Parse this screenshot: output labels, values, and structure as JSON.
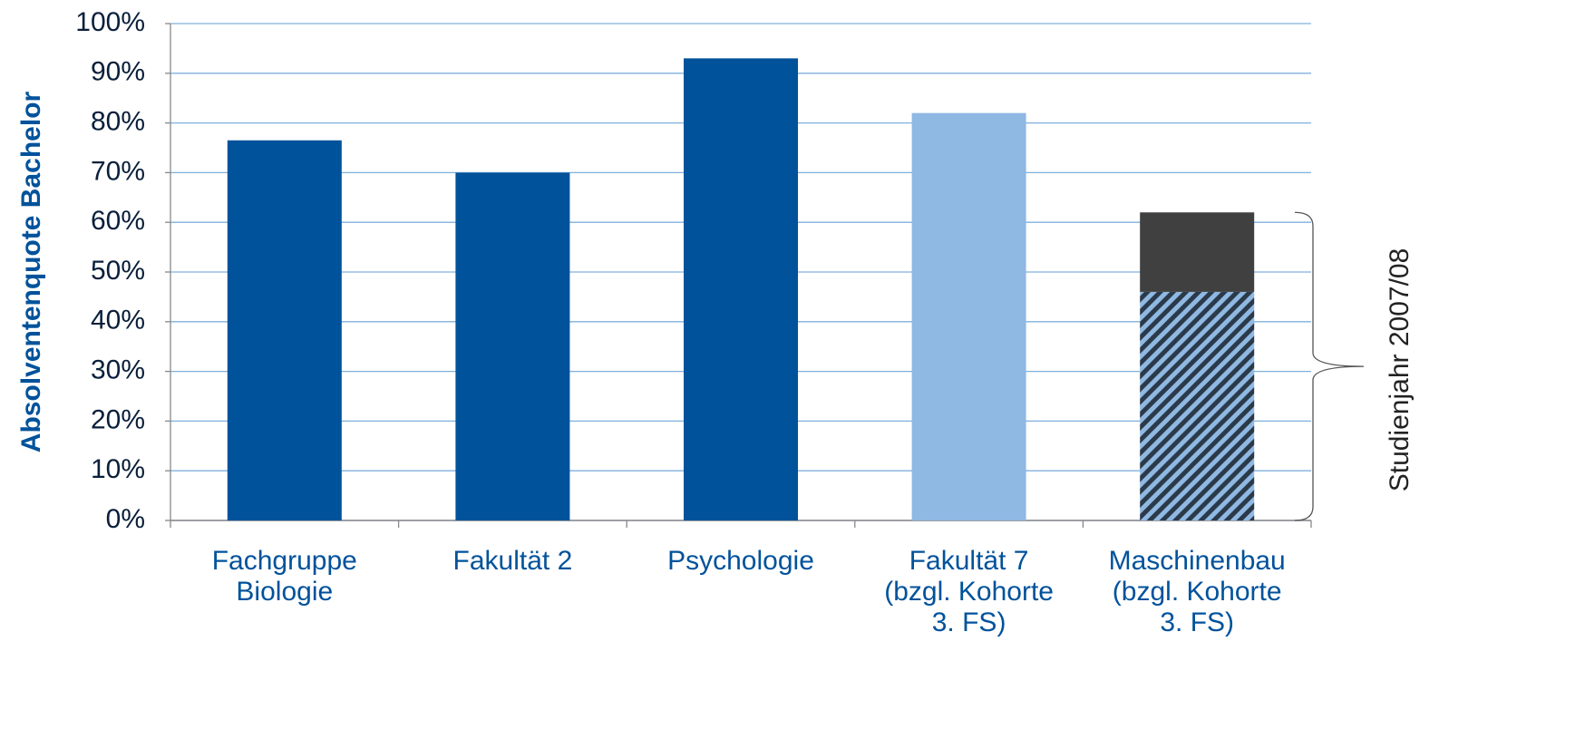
{
  "chart_data": {
    "type": "bar",
    "y_axis_label": "Absolventenquote Bachelor",
    "annotation": "Studienjahr 2007/08",
    "categories": [
      "Fachgruppe\nBiologie",
      "Fakultät 2",
      "Psychologie",
      "Fakultät 7\n(bzgl. Kohorte\n3. FS)",
      "Maschinenbau\n(bzgl. Kohorte\n3. FS)"
    ],
    "series": [
      {
        "values": [
          76.5,
          70,
          93,
          82,
          46
        ],
        "colors": [
          "#00529b",
          "#00529b",
          "#00529b",
          "#8fb8e2",
          "#8fb8e2"
        ],
        "hatch": [
          false,
          false,
          false,
          false,
          true
        ]
      },
      {
        "values": [
          null,
          null,
          null,
          null,
          16
        ],
        "color": "#404040"
      }
    ],
    "ylim": [
      0,
      100
    ],
    "yticks": [
      {
        "value": 0,
        "label": "0%"
      },
      {
        "value": 10,
        "label": "10%"
      },
      {
        "value": 20,
        "label": "20%"
      },
      {
        "value": 30,
        "label": "30%"
      },
      {
        "value": 40,
        "label": "40%"
      },
      {
        "value": 50,
        "label": "50%"
      },
      {
        "value": 60,
        "label": "60%"
      },
      {
        "value": 70,
        "label": "70%"
      },
      {
        "value": 80,
        "label": "80%"
      },
      {
        "value": 90,
        "label": "90%"
      },
      {
        "value": 100,
        "label": "100%"
      }
    ],
    "grid": true
  }
}
